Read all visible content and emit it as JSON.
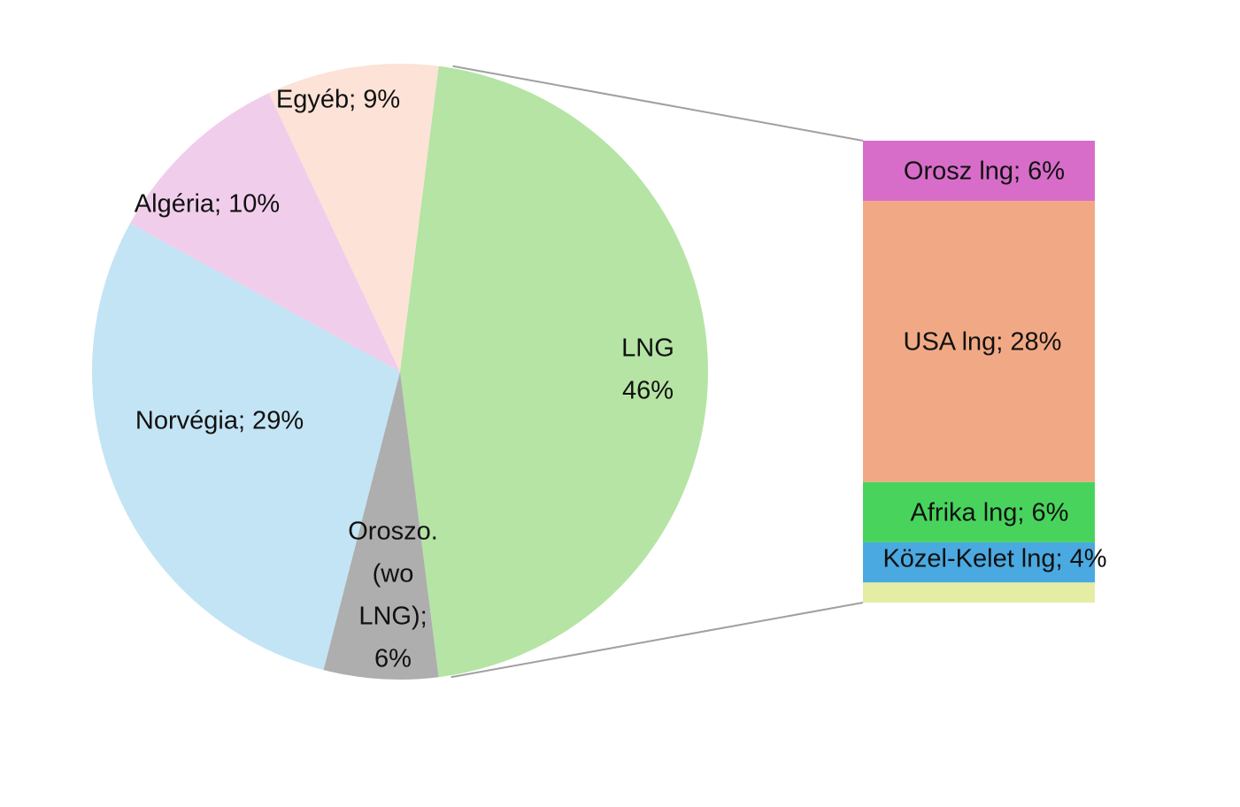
{
  "chart_data": {
    "type": "pie",
    "values": [
      46,
      6,
      29,
      10,
      9
    ],
    "value_labels": [
      [
        "LNG",
        "46%"
      ],
      [
        "Oroszo.",
        "(wo",
        "LNG);",
        "6%"
      ],
      [
        "Norvégia; 29%"
      ],
      [
        "Algéria; 10%"
      ],
      [
        "Egyéb; 9%"
      ]
    ],
    "colors": [
      "#b5e4a4",
      "#aeaeae",
      "#c3e4f4",
      "#f1cdec",
      "#fce2d7"
    ],
    "split_slice": 0,
    "bar": {
      "values": [
        6,
        28,
        6,
        4,
        2
      ],
      "value_labels": [
        "Orosz lng; 6%",
        "USA lng; 28%",
        "Afrika lng; 6%",
        "Közel-Kelet lng; 4%",
        null
      ],
      "colors": [
        "#d86dc9",
        "#f1a985",
        "#48d45c",
        "#4aa9e0",
        "#e5eda5"
      ]
    }
  }
}
